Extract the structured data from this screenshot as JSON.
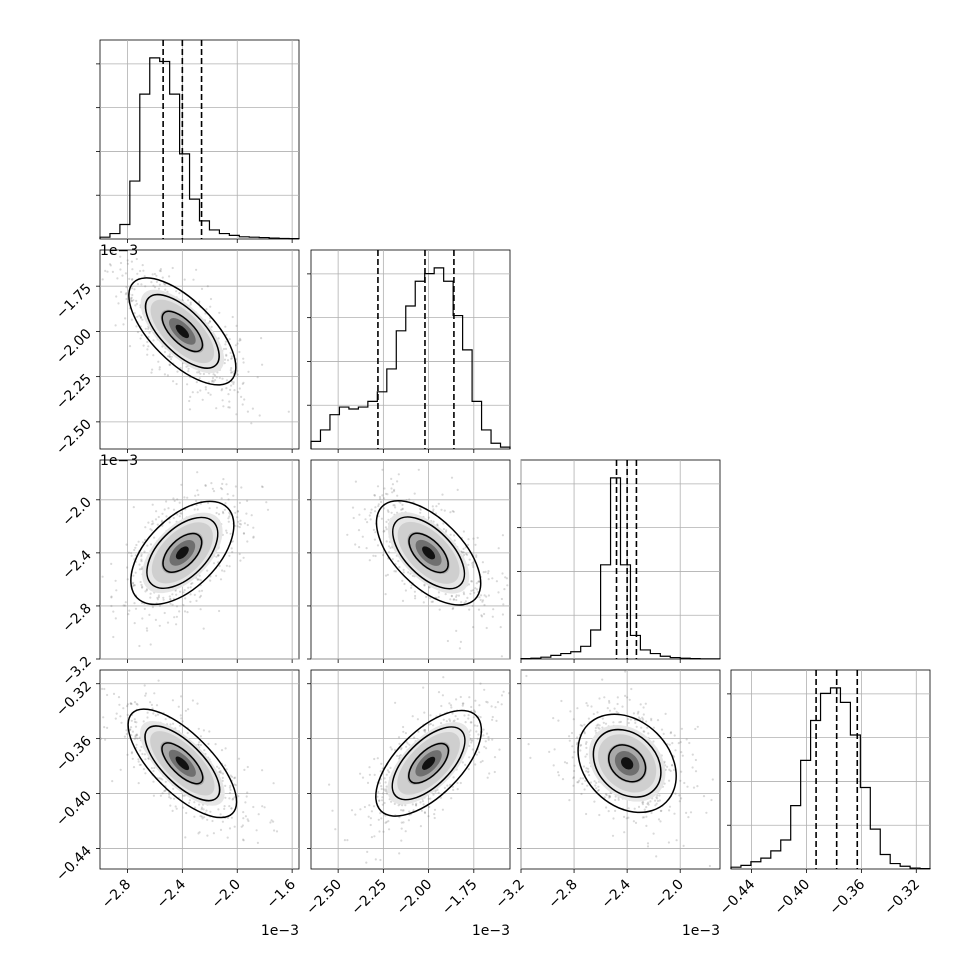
{
  "chart_data": {
    "type": "corner",
    "grid": true,
    "parameters": [
      {
        "index": 0,
        "axis_range": [
          -0.003,
          -0.00155
        ],
        "tick_labels": [
          "-2.8",
          "-2.4",
          "-2.0",
          "-1.6"
        ],
        "tick_values": [
          -0.0028,
          -0.0024,
          -0.002,
          -0.0016
        ],
        "offset_label": "1e−3",
        "quantiles": [
          -0.00254,
          -0.0024,
          -0.00226
        ]
      },
      {
        "index": 1,
        "axis_range": [
          -0.00265,
          -0.00155
        ],
        "tick_labels": [
          "-2.50",
          "-2.25",
          "-2.00",
          "-1.75"
        ],
        "tick_values": [
          -0.0025,
          -0.00225,
          -0.002,
          -0.00175
        ],
        "offset_label": "1e−3",
        "quantiles": [
          -0.00228,
          -0.00202,
          -0.00186
        ]
      },
      {
        "index": 2,
        "axis_range": [
          -0.0032,
          -0.0017
        ],
        "tick_labels": [
          "-3.2",
          "-2.8",
          "-2.4",
          "-2.0"
        ],
        "tick_values": [
          -0.0032,
          -0.0028,
          -0.0024,
          -0.002
        ],
        "offset_label": "1e−3",
        "quantiles": [
          -0.00248,
          -0.0024,
          -0.00233
        ]
      },
      {
        "index": 3,
        "axis_range": [
          -0.455,
          -0.31
        ],
        "tick_labels": [
          "-0.44",
          "-0.40",
          "-0.36",
          "-0.32"
        ],
        "tick_values": [
          -0.44,
          -0.4,
          -0.36,
          -0.32
        ],
        "offset_label": "",
        "quantiles": [
          -0.393,
          -0.378,
          -0.363
        ]
      }
    ],
    "histograms": [
      {
        "param": 0,
        "bin_edges": [
          -0.003,
          -0.00155
        ],
        "counts": [
          0.01,
          0.03,
          0.08,
          0.32,
          0.8,
          1.0,
          0.98,
          0.8,
          0.47,
          0.22,
          0.1,
          0.05,
          0.03,
          0.02,
          0.012,
          0.01,
          0.008,
          0.005,
          0.003,
          0.002
        ]
      },
      {
        "param": 1,
        "bin_edges": [
          -0.00265,
          -0.00155
        ],
        "counts": [
          0.04,
          0.1,
          0.18,
          0.22,
          0.21,
          0.22,
          0.25,
          0.3,
          0.42,
          0.62,
          0.75,
          0.88,
          0.92,
          0.95,
          0.88,
          0.7,
          0.52,
          0.25,
          0.1,
          0.03,
          0.01
        ]
      },
      {
        "param": 2,
        "bin_edges": [
          -0.0032,
          -0.0017
        ],
        "counts": [
          0.002,
          0.004,
          0.01,
          0.02,
          0.03,
          0.04,
          0.07,
          0.16,
          0.52,
          1.0,
          0.52,
          0.13,
          0.05,
          0.03,
          0.015,
          0.008,
          0.004,
          0.002,
          0.001,
          0.001
        ]
      },
      {
        "param": 3,
        "bin_edges": [
          -0.455,
          -0.31
        ],
        "counts": [
          0.01,
          0.02,
          0.04,
          0.06,
          0.1,
          0.16,
          0.35,
          0.6,
          0.82,
          0.97,
          1.0,
          0.92,
          0.74,
          0.45,
          0.22,
          0.08,
          0.03,
          0.015,
          0.005,
          0.002
        ]
      }
    ],
    "pair_panels": [
      {
        "x": 0,
        "y": 1,
        "center": [
          -0.0024,
          -0.002
        ],
        "correlation": -0.6
      },
      {
        "x": 0,
        "y": 2,
        "center": [
          -0.0024,
          -0.0024
        ],
        "correlation": 0.45
      },
      {
        "x": 1,
        "y": 2,
        "center": [
          -0.002,
          -0.0024
        ],
        "correlation": -0.5
      },
      {
        "x": 0,
        "y": 3,
        "center": [
          -0.0024,
          -0.378
        ],
        "correlation": -0.65
      },
      {
        "x": 1,
        "y": 3,
        "center": [
          -0.002,
          -0.378
        ],
        "correlation": 0.55
      },
      {
        "x": 2,
        "y": 3,
        "center": [
          -0.0024,
          -0.378
        ],
        "correlation": -0.2
      }
    ]
  }
}
